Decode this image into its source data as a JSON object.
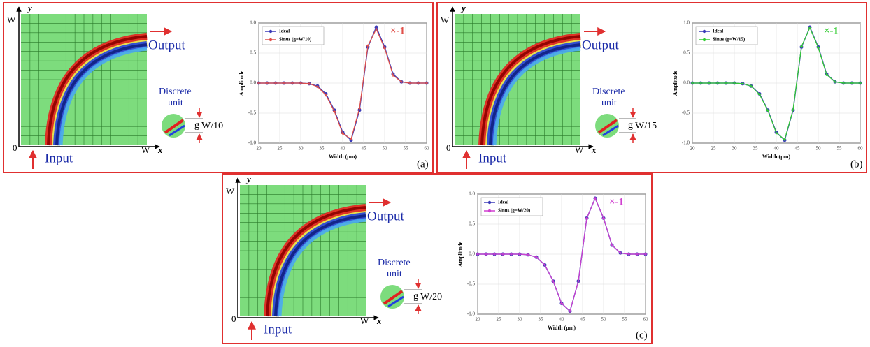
{
  "chart_data": [
    {
      "type": "line",
      "xlabel": "Width (μm)",
      "ylabel": "Amplitude",
      "x": [
        20,
        22,
        24,
        26,
        28,
        30,
        32,
        34,
        36,
        38,
        40,
        42,
        44,
        46,
        48,
        50,
        52,
        54,
        56,
        58,
        60
      ],
      "series": [
        {
          "name": "Ideal",
          "color": "#3a3ab8",
          "values": [
            0,
            0,
            0,
            0,
            0,
            0,
            -0.01,
            -0.05,
            -0.18,
            -0.45,
            -0.82,
            -0.95,
            -0.45,
            0.6,
            0.93,
            0.6,
            0.15,
            0.02,
            0,
            0,
            0
          ]
        },
        {
          "name": "Sinus (g=W/10)",
          "color": "#e0504a",
          "values": [
            0,
            0,
            0,
            0,
            0,
            0,
            -0.01,
            -0.06,
            -0.2,
            -0.47,
            -0.84,
            -0.93,
            -0.42,
            0.62,
            0.9,
            0.58,
            0.13,
            0.02,
            0,
            0,
            0
          ]
        }
      ],
      "xlim": [
        20,
        60
      ],
      "xticks": [
        20,
        25,
        30,
        35,
        40,
        45,
        50,
        55,
        60
      ],
      "ylim": [
        -1,
        1
      ],
      "yticks": [
        {
          "value": -1,
          "label": "-1.0"
        },
        {
          "value": -0.5,
          "label": "-0.5"
        },
        {
          "value": 0,
          "label": "0.0"
        },
        {
          "value": 0.5,
          "label": "0.5"
        },
        {
          "value": 1,
          "label": "1.0"
        }
      ],
      "grid": true
    },
    {
      "type": "line",
      "xlabel": "Width (μm)",
      "ylabel": "Amplitude",
      "x": [
        20,
        22,
        24,
        26,
        28,
        30,
        32,
        34,
        36,
        38,
        40,
        42,
        44,
        46,
        48,
        50,
        52,
        54,
        56,
        58,
        60
      ],
      "series": [
        {
          "name": "Ideal",
          "color": "#3a3ab8",
          "values": [
            0,
            0,
            0,
            0,
            0,
            0,
            -0.01,
            -0.05,
            -0.18,
            -0.45,
            -0.82,
            -0.95,
            -0.45,
            0.6,
            0.93,
            0.6,
            0.15,
            0.02,
            0,
            0,
            0
          ]
        },
        {
          "name": "Sinus (g=W/15)",
          "color": "#33cc33",
          "values": [
            0,
            0,
            0,
            0,
            0,
            0,
            -0.01,
            -0.05,
            -0.19,
            -0.46,
            -0.83,
            -0.94,
            -0.44,
            0.61,
            0.92,
            0.59,
            0.14,
            0.02,
            0,
            0,
            0
          ]
        }
      ],
      "xlim": [
        20,
        60
      ],
      "xticks": [
        20,
        25,
        30,
        35,
        40,
        45,
        50,
        55,
        60
      ],
      "ylim": [
        -1,
        1
      ],
      "yticks": [
        {
          "value": -1,
          "label": "-1.0"
        },
        {
          "value": -0.5,
          "label": "-0.5"
        },
        {
          "value": 0,
          "label": "0.0"
        },
        {
          "value": 0.5,
          "label": "0.5"
        },
        {
          "value": 1,
          "label": "1.0"
        }
      ],
      "grid": true
    },
    {
      "type": "line",
      "xlabel": "Width (μm)",
      "ylabel": "Amplitude",
      "x": [
        20,
        22,
        24,
        26,
        28,
        30,
        32,
        34,
        36,
        38,
        40,
        42,
        44,
        46,
        48,
        50,
        52,
        54,
        56,
        58,
        60
      ],
      "series": [
        {
          "name": "Ideal",
          "color": "#3a3ab8",
          "values": [
            0,
            0,
            0,
            0,
            0,
            0,
            -0.01,
            -0.05,
            -0.18,
            -0.45,
            -0.82,
            -0.95,
            -0.45,
            0.6,
            0.93,
            0.6,
            0.15,
            0.02,
            0,
            0,
            0
          ]
        },
        {
          "name": "Sinus (g=W/20)",
          "color": "#d040d0",
          "values": [
            0,
            0,
            0,
            0,
            0,
            0,
            -0.01,
            -0.05,
            -0.18,
            -0.45,
            -0.82,
            -0.95,
            -0.45,
            0.6,
            0.93,
            0.6,
            0.15,
            0.02,
            0,
            0,
            0
          ]
        }
      ],
      "xlim": [
        20,
        60
      ],
      "xticks": [
        20,
        25,
        30,
        35,
        40,
        45,
        50,
        55,
        60
      ],
      "ylim": [
        -1,
        1
      ],
      "yticks": [
        {
          "value": -1,
          "label": "-1.0"
        },
        {
          "value": -0.5,
          "label": "-0.5"
        },
        {
          "value": 0,
          "label": "0.0"
        },
        {
          "value": 0.5,
          "label": "0.5"
        },
        {
          "value": 1,
          "label": "1.0"
        }
      ],
      "grid": true
    }
  ],
  "panels": [
    {
      "label": "(a)",
      "scale": "×-1",
      "scale_color": "#e0504a",
      "output": "Output",
      "input": "Input",
      "unit_line1": "Discrete",
      "unit_line2": "unit",
      "gap": "g",
      "gap_width": "W/10",
      "x_axis": "x",
      "y_axis": "y",
      "origin": "0",
      "width_x": "W",
      "width_y": "W"
    },
    {
      "label": "(b)",
      "scale": "×-1",
      "scale_color": "#33cc33",
      "output": "Output",
      "input": "Input",
      "unit_line1": "Discrete",
      "unit_line2": "unit",
      "gap": "g",
      "gap_width": "W/15",
      "x_axis": "x",
      "y_axis": "y",
      "origin": "0",
      "width_x": "W",
      "width_y": "W"
    },
    {
      "label": "(c)",
      "scale": "×-1",
      "scale_color": "#d040d0",
      "output": "Output",
      "input": "Input",
      "unit_line1": "Discrete",
      "unit_line2": "unit",
      "gap": "g",
      "gap_width": "W/20",
      "x_axis": "x",
      "y_axis": "y",
      "origin": "0",
      "width_x": "W",
      "width_y": "W"
    }
  ]
}
